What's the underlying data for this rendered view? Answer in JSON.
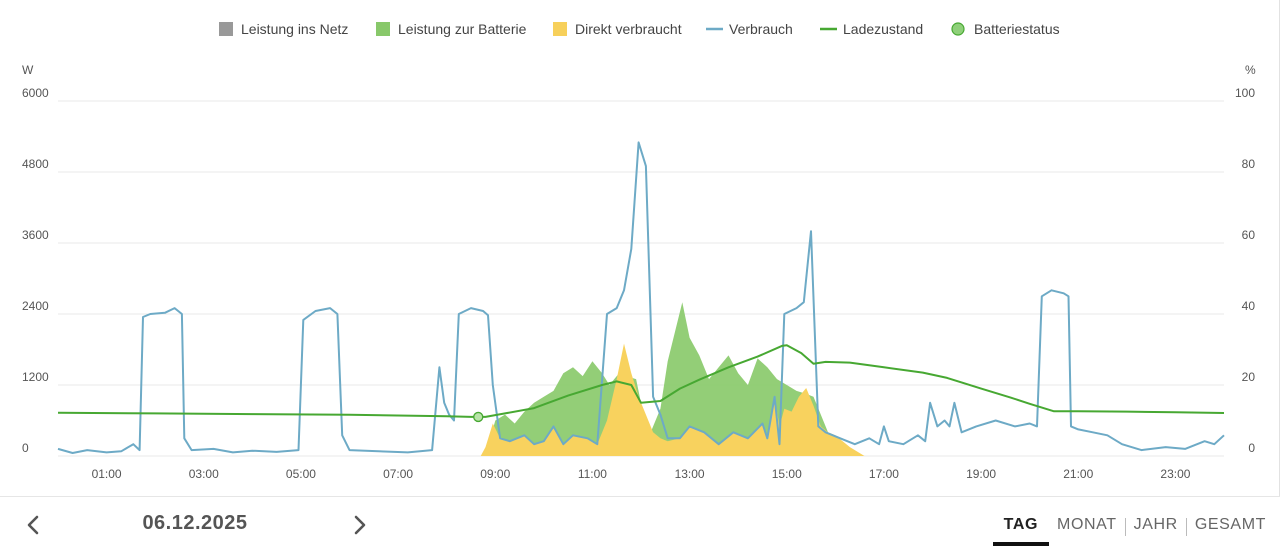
{
  "chart_data": {
    "type": "area",
    "legend": [
      {
        "label": "Leistung ins Netz",
        "color": "#999999",
        "marker": "square"
      },
      {
        "label": "Leistung zur Batterie",
        "color": "#88c86a",
        "marker": "square"
      },
      {
        "label": "Direkt verbraucht",
        "color": "#f7d05b",
        "marker": "square"
      },
      {
        "label": "Verbrauch",
        "color": "#6daac6",
        "marker": "line"
      },
      {
        "label": "Ladezustand",
        "color": "#47a832",
        "marker": "line"
      },
      {
        "label": "Batteriestatus",
        "color": "#8fd07a",
        "marker": "circle"
      }
    ],
    "y_left": {
      "unit": "W",
      "ticks": [
        "6000",
        "4800",
        "3600",
        "2400",
        "1200",
        "0"
      ],
      "range": [
        0,
        6000
      ]
    },
    "y_right": {
      "unit": "%",
      "ticks": [
        "100",
        "80",
        "60",
        "40",
        "20",
        "0"
      ],
      "range": [
        0,
        100
      ]
    },
    "x": {
      "range_hours": [
        0,
        24
      ],
      "tick_labels": [
        "01:00",
        "03:00",
        "05:00",
        "07:00",
        "09:00",
        "11:00",
        "13:00",
        "15:00",
        "17:00",
        "19:00",
        "21:00",
        "23:00"
      ],
      "tick_hours": [
        1,
        3,
        5,
        7,
        9,
        11,
        13,
        15,
        17,
        19,
        21,
        23
      ]
    },
    "grid": true,
    "legend_position": "top",
    "series": [
      {
        "name": "Verbrauch",
        "unit": "W",
        "points": [
          [
            0,
            120
          ],
          [
            0.3,
            50
          ],
          [
            0.6,
            100
          ],
          [
            1.0,
            60
          ],
          [
            1.3,
            80
          ],
          [
            1.55,
            200
          ],
          [
            1.68,
            100
          ],
          [
            1.75,
            2350
          ],
          [
            1.9,
            2400
          ],
          [
            2.2,
            2420
          ],
          [
            2.4,
            2500
          ],
          [
            2.55,
            2400
          ],
          [
            2.6,
            300
          ],
          [
            2.75,
            100
          ],
          [
            3.2,
            120
          ],
          [
            3.6,
            60
          ],
          [
            4.0,
            90
          ],
          [
            4.5,
            70
          ],
          [
            4.95,
            100
          ],
          [
            5.05,
            2300
          ],
          [
            5.3,
            2450
          ],
          [
            5.6,
            2500
          ],
          [
            5.75,
            2400
          ],
          [
            5.85,
            350
          ],
          [
            6.0,
            100
          ],
          [
            6.6,
            80
          ],
          [
            7.2,
            60
          ],
          [
            7.7,
            100
          ],
          [
            7.85,
            1500
          ],
          [
            7.95,
            900
          ],
          [
            8.05,
            700
          ],
          [
            8.15,
            600
          ],
          [
            8.25,
            2400
          ],
          [
            8.5,
            2500
          ],
          [
            8.75,
            2450
          ],
          [
            8.85,
            2380
          ],
          [
            8.95,
            1200
          ],
          [
            9.1,
            300
          ],
          [
            9.3,
            250
          ],
          [
            9.6,
            350
          ],
          [
            9.8,
            200
          ],
          [
            10.0,
            250
          ],
          [
            10.2,
            500
          ],
          [
            10.4,
            200
          ],
          [
            10.6,
            350
          ],
          [
            10.9,
            300
          ],
          [
            11.1,
            200
          ],
          [
            11.3,
            2400
          ],
          [
            11.5,
            2500
          ],
          [
            11.65,
            2800
          ],
          [
            11.8,
            3500
          ],
          [
            11.95,
            5300
          ],
          [
            12.1,
            4900
          ],
          [
            12.25,
            1000
          ],
          [
            12.4,
            700
          ],
          [
            12.55,
            300
          ],
          [
            12.8,
            300
          ],
          [
            13.0,
            500
          ],
          [
            13.3,
            400
          ],
          [
            13.6,
            200
          ],
          [
            13.9,
            400
          ],
          [
            14.2,
            300
          ],
          [
            14.5,
            550
          ],
          [
            14.6,
            300
          ],
          [
            14.75,
            1000
          ],
          [
            14.85,
            200
          ],
          [
            14.95,
            2400
          ],
          [
            15.2,
            2500
          ],
          [
            15.35,
            2600
          ],
          [
            15.5,
            3800
          ],
          [
            15.65,
            500
          ],
          [
            15.8,
            400
          ],
          [
            16.1,
            300
          ],
          [
            16.4,
            200
          ],
          [
            16.7,
            300
          ],
          [
            16.9,
            200
          ],
          [
            17.0,
            500
          ],
          [
            17.1,
            250
          ],
          [
            17.4,
            200
          ],
          [
            17.7,
            350
          ],
          [
            17.85,
            250
          ],
          [
            17.95,
            900
          ],
          [
            18.1,
            500
          ],
          [
            18.25,
            600
          ],
          [
            18.35,
            500
          ],
          [
            18.45,
            900
          ],
          [
            18.6,
            400
          ],
          [
            18.9,
            500
          ],
          [
            19.3,
            600
          ],
          [
            19.7,
            500
          ],
          [
            20.0,
            550
          ],
          [
            20.15,
            500
          ],
          [
            20.25,
            2700
          ],
          [
            20.45,
            2800
          ],
          [
            20.7,
            2750
          ],
          [
            20.8,
            2700
          ],
          [
            20.85,
            500
          ],
          [
            21.0,
            450
          ],
          [
            21.3,
            400
          ],
          [
            21.6,
            350
          ],
          [
            21.9,
            200
          ],
          [
            22.3,
            100
          ],
          [
            22.8,
            150
          ],
          [
            23.2,
            120
          ],
          [
            23.6,
            250
          ],
          [
            23.8,
            200
          ],
          [
            24.0,
            350
          ]
        ]
      },
      {
        "name": "Leistung zur Batterie",
        "unit": "W",
        "points": [
          [
            8.8,
            0
          ],
          [
            9.0,
            600
          ],
          [
            9.2,
            700
          ],
          [
            9.4,
            550
          ],
          [
            9.6,
            750
          ],
          [
            9.8,
            900
          ],
          [
            10.0,
            1000
          ],
          [
            10.2,
            1100
          ],
          [
            10.4,
            1400
          ],
          [
            10.6,
            1500
          ],
          [
            10.8,
            1350
          ],
          [
            11.0,
            1600
          ],
          [
            11.2,
            1400
          ],
          [
            11.35,
            1200
          ],
          [
            11.55,
            1400
          ],
          [
            11.7,
            1350
          ],
          [
            11.9,
            1300
          ],
          [
            12.05,
            700
          ],
          [
            12.2,
            400
          ],
          [
            12.4,
            800
          ],
          [
            12.55,
            1600
          ],
          [
            12.7,
            2100
          ],
          [
            12.85,
            2600
          ],
          [
            13.0,
            2000
          ],
          [
            13.2,
            1700
          ],
          [
            13.4,
            1300
          ],
          [
            13.6,
            1500
          ],
          [
            13.8,
            1700
          ],
          [
            14.0,
            1400
          ],
          [
            14.2,
            1200
          ],
          [
            14.4,
            1650
          ],
          [
            14.6,
            1500
          ],
          [
            14.8,
            1300
          ],
          [
            15.0,
            1200
          ],
          [
            15.2,
            1100
          ],
          [
            15.4,
            1050
          ],
          [
            15.55,
            1000
          ],
          [
            15.7,
            700
          ],
          [
            15.85,
            400
          ],
          [
            16.0,
            150
          ],
          [
            16.2,
            0
          ]
        ]
      },
      {
        "name": "Direkt verbraucht",
        "unit": "W",
        "points": [
          [
            8.7,
            0
          ],
          [
            8.8,
            150
          ],
          [
            8.95,
            550
          ],
          [
            9.1,
            300
          ],
          [
            9.3,
            250
          ],
          [
            9.6,
            350
          ],
          [
            9.8,
            200
          ],
          [
            10.0,
            250
          ],
          [
            10.2,
            500
          ],
          [
            10.4,
            200
          ],
          [
            10.6,
            350
          ],
          [
            10.9,
            300
          ],
          [
            11.1,
            200
          ],
          [
            11.3,
            600
          ],
          [
            11.5,
            1300
          ],
          [
            11.65,
            1900
          ],
          [
            11.8,
            1400
          ],
          [
            11.95,
            1000
          ],
          [
            12.1,
            700
          ],
          [
            12.25,
            400
          ],
          [
            12.4,
            300
          ],
          [
            12.55,
            250
          ],
          [
            12.8,
            300
          ],
          [
            13.0,
            500
          ],
          [
            13.3,
            400
          ],
          [
            13.6,
            200
          ],
          [
            13.9,
            400
          ],
          [
            14.2,
            300
          ],
          [
            14.5,
            550
          ],
          [
            14.6,
            300
          ],
          [
            14.75,
            1000
          ],
          [
            14.85,
            500
          ],
          [
            14.95,
            800
          ],
          [
            15.1,
            750
          ],
          [
            15.25,
            1000
          ],
          [
            15.4,
            1150
          ],
          [
            15.55,
            850
          ],
          [
            15.7,
            500
          ],
          [
            15.85,
            400
          ],
          [
            16.0,
            350
          ],
          [
            16.3,
            150
          ],
          [
            16.6,
            0
          ]
        ]
      },
      {
        "name": "Ladezustand",
        "unit": "%",
        "points": [
          [
            0,
            12.2
          ],
          [
            2,
            12.0
          ],
          [
            4,
            11.8
          ],
          [
            6,
            11.6
          ],
          [
            8,
            11.2
          ],
          [
            8.5,
            11.0
          ],
          [
            8.8,
            11.0
          ],
          [
            9.2,
            12.0
          ],
          [
            9.8,
            13.5
          ],
          [
            10.5,
            17.0
          ],
          [
            11.2,
            20.0
          ],
          [
            11.5,
            21.0
          ],
          [
            11.8,
            20.0
          ],
          [
            12.0,
            15.0
          ],
          [
            12.4,
            15.5
          ],
          [
            12.8,
            19.0
          ],
          [
            13.2,
            21.5
          ],
          [
            13.8,
            25.0
          ],
          [
            14.4,
            28.0
          ],
          [
            14.9,
            31.0
          ],
          [
            15.0,
            31.2
          ],
          [
            15.3,
            29.0
          ],
          [
            15.55,
            26.0
          ],
          [
            15.8,
            26.5
          ],
          [
            16.3,
            26.3
          ],
          [
            17.0,
            25.0
          ],
          [
            17.8,
            23.5
          ],
          [
            18.3,
            22.0
          ],
          [
            19.0,
            19.0
          ],
          [
            19.6,
            16.5
          ],
          [
            20.0,
            14.7
          ],
          [
            20.5,
            12.6
          ],
          [
            21.0,
            12.6
          ],
          [
            22.0,
            12.5
          ],
          [
            23.0,
            12.3
          ],
          [
            24.0,
            12.1
          ]
        ]
      }
    ],
    "battery_status_points": [
      [
        8.65,
        11.0
      ]
    ]
  },
  "footer": {
    "prev_icon": "chevron-left-icon",
    "next_icon": "chevron-right-icon",
    "date": "06.12.2025",
    "tabs": [
      {
        "label": "TAG",
        "active": true
      },
      {
        "label": "MONAT",
        "active": false
      },
      {
        "label": "JAHR",
        "active": false
      },
      {
        "label": "GESAMT",
        "active": false
      }
    ]
  }
}
